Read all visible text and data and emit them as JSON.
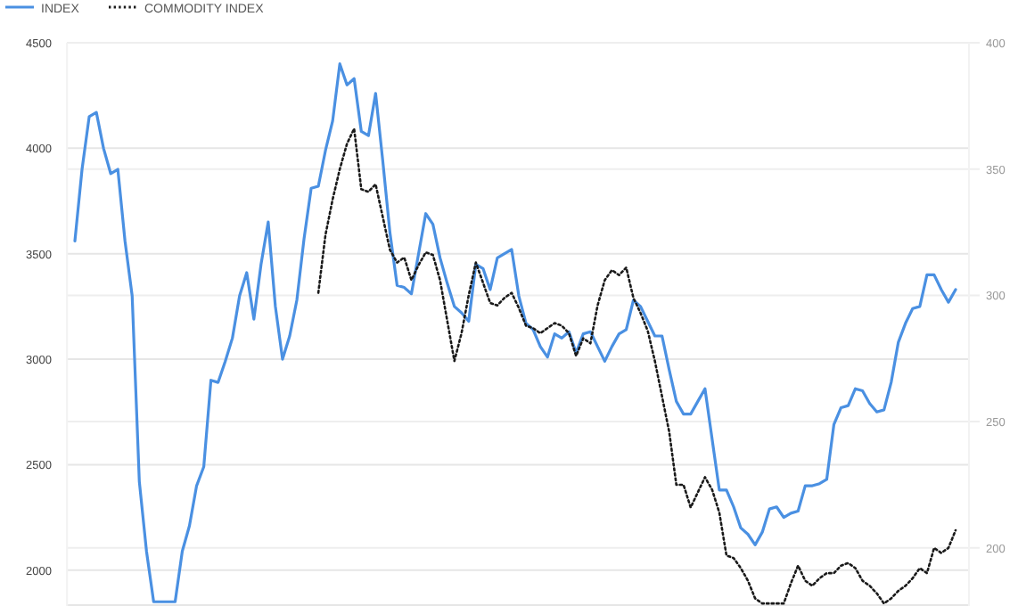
{
  "chart_data": {
    "type": "line",
    "categories": [
      null,
      null,
      null,
      null,
      null,
      null,
      null,
      null,
      null,
      null,
      null,
      null,
      null,
      null,
      null,
      null,
      null,
      null,
      null,
      null,
      null,
      null,
      null,
      null,
      null,
      null,
      null,
      null,
      null,
      null,
      null,
      null,
      null,
      null,
      null,
      null,
      null,
      null,
      null,
      null,
      null,
      null,
      null,
      null,
      null,
      null,
      null,
      null,
      null,
      null,
      null,
      null,
      null,
      null,
      null,
      null,
      null,
      null,
      null,
      null,
      null,
      null,
      null,
      null,
      null,
      null,
      null,
      null,
      null,
      null,
      null,
      null,
      null,
      null,
      null,
      null,
      null,
      null,
      null,
      null,
      null,
      null,
      null,
      null,
      null,
      null,
      null,
      null,
      null,
      null,
      null,
      null,
      null,
      null,
      null,
      null,
      null,
      null,
      null,
      null,
      null,
      null,
      null,
      null,
      null,
      null,
      null,
      null,
      null,
      null,
      null,
      null,
      null,
      null,
      null,
      null,
      null,
      null,
      null,
      null,
      null,
      null,
      null,
      null
    ],
    "ylim": [
      1830,
      4500
    ],
    "yticks": [
      2000,
      2500,
      3000,
      3500,
      4000,
      4500
    ],
    "y2lim": [
      177,
      400
    ],
    "y2ticks": [
      200,
      250,
      300,
      350,
      400
    ],
    "grid": "y",
    "legend": "top left",
    "marker": "none",
    "series": [
      {
        "name": "INDEX",
        "color": "#4a90e2",
        "line_style": "solid",
        "values": [
          3560,
          3900,
          4150,
          4170,
          4000,
          3880,
          3900,
          3560,
          3300,
          2420,
          2090,
          1850,
          1850,
          1850,
          1850,
          2090,
          2210,
          2400,
          2490,
          2900,
          2890,
          2990,
          3100,
          3300,
          3410,
          3190,
          3450,
          3650,
          3250,
          3000,
          3110,
          3280,
          3570,
          3810,
          3820,
          3990,
          4130,
          4400,
          4300,
          4330,
          4080,
          4060,
          4260,
          3940,
          3600,
          3350,
          3340,
          3310,
          3500,
          3690,
          3640,
          3480,
          3360,
          3250,
          3220,
          3180,
          3450,
          3430,
          3330,
          3480,
          3500,
          3520,
          3300,
          3170,
          3140,
          3060,
          3010,
          3120,
          3100,
          3130,
          3030,
          3120,
          3130,
          3060,
          2990,
          3060,
          3120,
          3140,
          3280,
          3250,
          3180,
          3110,
          3110,
          2950,
          2800,
          2740,
          2740,
          2800,
          2860,
          2620,
          2380,
          2380,
          2300,
          2200,
          2170,
          2120,
          2180,
          2290,
          2300,
          2250,
          2270,
          2280,
          2400,
          2400,
          2410,
          2430,
          2690,
          2770,
          2780,
          2860,
          2850,
          2790,
          2750,
          2760,
          2890,
          3080,
          3170,
          3240,
          3250,
          3400,
          3400,
          3330,
          3270,
          3330
        ]
      },
      {
        "name": "COMMODITY INDEX",
        "color": "#1a1a1a",
        "line_style": "dotted",
        "axis": "y2",
        "values": [
          null,
          null,
          null,
          null,
          null,
          null,
          null,
          null,
          null,
          null,
          null,
          null,
          null,
          null,
          null,
          null,
          null,
          null,
          null,
          null,
          null,
          null,
          null,
          null,
          null,
          null,
          null,
          null,
          null,
          null,
          null,
          null,
          null,
          null,
          301,
          324,
          338,
          350,
          360,
          366,
          342,
          341,
          344,
          331,
          318,
          313,
          315,
          306,
          312,
          317,
          316,
          306,
          290,
          274,
          285,
          300,
          313,
          305,
          297,
          296,
          299,
          301,
          295,
          288,
          287,
          285,
          287,
          289,
          288,
          285,
          276,
          283,
          281,
          296,
          306,
          310,
          308,
          311,
          299,
          293,
          286,
          274,
          260,
          246,
          225,
          225,
          216,
          222,
          228,
          223,
          214,
          197,
          196,
          192,
          187,
          180,
          178,
          178,
          178,
          178,
          186,
          193,
          187,
          185,
          188,
          190,
          190,
          193,
          194,
          192,
          187,
          185,
          182,
          178,
          180,
          183,
          185,
          188,
          192,
          190,
          200,
          198,
          200,
          207
        ]
      }
    ]
  }
}
